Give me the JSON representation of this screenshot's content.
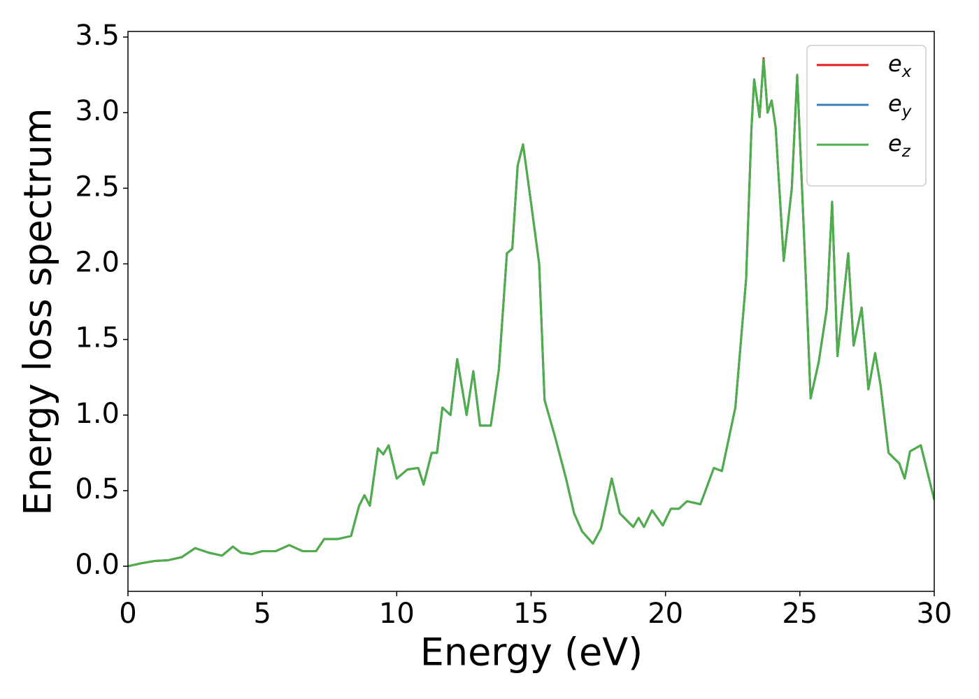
{
  "chart_data": {
    "type": "line",
    "xlabel": "Energy (eV)",
    "ylabel": "Energy loss spectrum",
    "x": [
      0,
      0.5,
      1,
      1.5,
      2,
      2.5,
      3,
      3.5,
      3.9,
      4.2,
      4.6,
      5,
      5.5,
      6,
      6.5,
      7,
      7.3,
      7.8,
      8.3,
      8.6,
      8.8,
      9,
      9.3,
      9.5,
      9.7,
      10,
      10.4,
      10.8,
      11,
      11.3,
      11.5,
      11.7,
      12,
      12.25,
      12.6,
      12.85,
      13.1,
      13.5,
      13.8,
      14.1,
      14.3,
      14.5,
      14.7,
      15,
      15.3,
      15.5,
      15.9,
      16.3,
      16.6,
      16.9,
      17.3,
      17.6,
      18,
      18.3,
      18.8,
      19,
      19.2,
      19.5,
      19.9,
      20.2,
      20.5,
      20.8,
      21.3,
      21.8,
      22.1,
      22.6,
      23,
      23.2,
      23.3,
      23.5,
      23.65,
      23.8,
      23.95,
      24.1,
      24.4,
      24.7,
      24.9,
      25.2,
      25.4,
      25.7,
      26,
      26.2,
      26.4,
      26.8,
      27,
      27.3,
      27.55,
      27.8,
      28,
      28.3,
      28.7,
      28.9,
      29.1,
      29.5,
      30
    ],
    "series": [
      {
        "name": "e_x",
        "color": "#e41a1c",
        "values": [
          0,
          0.02,
          0.035,
          0.04,
          0.06,
          0.12,
          0.09,
          0.07,
          0.13,
          0.09,
          0.08,
          0.1,
          0.1,
          0.14,
          0.1,
          0.1,
          0.18,
          0.18,
          0.2,
          0.4,
          0.47,
          0.4,
          0.78,
          0.74,
          0.8,
          0.58,
          0.64,
          0.65,
          0.54,
          0.75,
          0.75,
          1.05,
          1.0,
          1.37,
          1.0,
          1.29,
          0.93,
          0.93,
          1.3,
          2.07,
          2.1,
          2.65,
          2.79,
          2.4,
          2.0,
          1.1,
          0.85,
          0.58,
          0.35,
          0.23,
          0.15,
          0.25,
          0.58,
          0.35,
          0.26,
          0.32,
          0.26,
          0.37,
          0.27,
          0.38,
          0.38,
          0.43,
          0.41,
          0.65,
          0.63,
          1.05,
          1.9,
          2.9,
          3.22,
          2.97,
          3.36,
          3.0,
          3.08,
          2.9,
          2.02,
          2.5,
          3.25,
          2.0,
          1.11,
          1.35,
          1.7,
          2.41,
          1.39,
          2.07,
          1.46,
          1.71,
          1.17,
          1.41,
          1.2,
          0.75,
          0.68,
          0.58,
          0.76,
          0.8,
          0.44
        ]
      },
      {
        "name": "e_y",
        "color": "#377eb8",
        "values": [
          0,
          0.02,
          0.035,
          0.04,
          0.06,
          0.12,
          0.09,
          0.07,
          0.13,
          0.09,
          0.08,
          0.1,
          0.1,
          0.14,
          0.1,
          0.1,
          0.18,
          0.18,
          0.2,
          0.4,
          0.47,
          0.4,
          0.78,
          0.74,
          0.8,
          0.58,
          0.64,
          0.65,
          0.54,
          0.75,
          0.75,
          1.05,
          1.0,
          1.37,
          1.0,
          1.29,
          0.93,
          0.93,
          1.3,
          2.07,
          2.1,
          2.65,
          2.79,
          2.4,
          2.0,
          1.1,
          0.85,
          0.58,
          0.35,
          0.23,
          0.15,
          0.25,
          0.58,
          0.35,
          0.26,
          0.32,
          0.26,
          0.37,
          0.27,
          0.38,
          0.38,
          0.43,
          0.41,
          0.65,
          0.63,
          1.05,
          1.9,
          2.9,
          3.22,
          2.97,
          3.35,
          3.0,
          3.08,
          2.9,
          2.02,
          2.5,
          3.25,
          2.0,
          1.11,
          1.35,
          1.7,
          2.41,
          1.39,
          2.07,
          1.46,
          1.71,
          1.17,
          1.41,
          1.2,
          0.75,
          0.68,
          0.58,
          0.76,
          0.8,
          0.44
        ]
      },
      {
        "name": "e_z",
        "color": "#4daf4a",
        "values": [
          0,
          0.02,
          0.035,
          0.04,
          0.06,
          0.12,
          0.09,
          0.07,
          0.13,
          0.09,
          0.08,
          0.1,
          0.1,
          0.14,
          0.1,
          0.1,
          0.18,
          0.18,
          0.2,
          0.4,
          0.47,
          0.4,
          0.78,
          0.74,
          0.8,
          0.58,
          0.64,
          0.65,
          0.54,
          0.75,
          0.75,
          1.05,
          1.0,
          1.37,
          1.0,
          1.29,
          0.93,
          0.93,
          1.3,
          2.07,
          2.1,
          2.65,
          2.79,
          2.4,
          2.0,
          1.1,
          0.85,
          0.58,
          0.35,
          0.23,
          0.15,
          0.25,
          0.58,
          0.35,
          0.26,
          0.32,
          0.26,
          0.37,
          0.27,
          0.38,
          0.38,
          0.43,
          0.41,
          0.65,
          0.63,
          1.05,
          1.9,
          2.9,
          3.22,
          2.97,
          3.35,
          3.0,
          3.08,
          2.9,
          2.02,
          2.5,
          3.25,
          2.0,
          1.11,
          1.35,
          1.7,
          2.41,
          1.39,
          2.07,
          1.46,
          1.71,
          1.17,
          1.41,
          1.2,
          0.75,
          0.68,
          0.58,
          0.76,
          0.8,
          0.44
        ]
      }
    ],
    "xlim": [
      0,
      30
    ],
    "xticks": [
      0,
      5,
      10,
      15,
      20,
      25,
      30
    ],
    "ylim": [
      -0.166,
      3.537
    ],
    "yticks": [
      {
        "value": 0,
        "label": "0.0"
      },
      {
        "value": 0.5,
        "label": "0.5"
      },
      {
        "value": 1,
        "label": "1.0"
      },
      {
        "value": 1.5,
        "label": "1.5"
      },
      {
        "value": 2,
        "label": "2.0"
      },
      {
        "value": 2.5,
        "label": "2.5"
      },
      {
        "value": 3,
        "label": "3.0"
      },
      {
        "value": 3.5,
        "label": "3.5"
      }
    ],
    "grid": false,
    "legend": "upper right"
  }
}
